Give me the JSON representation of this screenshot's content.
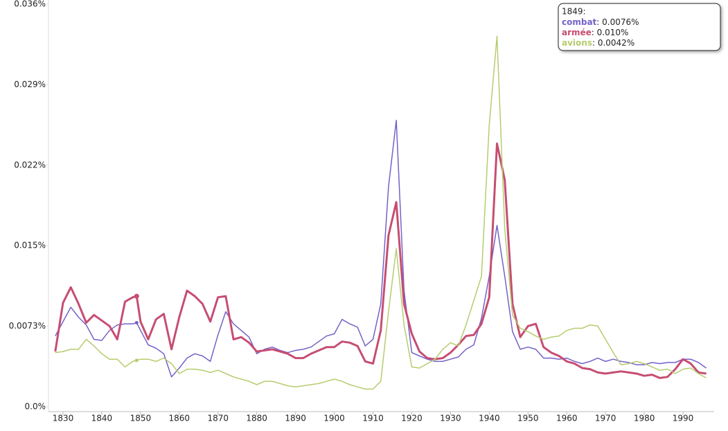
{
  "chart_data": {
    "type": "line",
    "x": [
      1828,
      1830,
      1832,
      1834,
      1836,
      1838,
      1840,
      1842,
      1844,
      1846,
      1848,
      1849,
      1850,
      1852,
      1854,
      1856,
      1858,
      1860,
      1862,
      1864,
      1866,
      1868,
      1870,
      1872,
      1874,
      1876,
      1878,
      1880,
      1882,
      1884,
      1886,
      1888,
      1890,
      1892,
      1894,
      1896,
      1898,
      1900,
      1902,
      1904,
      1906,
      1908,
      1910,
      1912,
      1914,
      1916,
      1918,
      1920,
      1922,
      1924,
      1926,
      1928,
      1930,
      1932,
      1934,
      1936,
      1938,
      1940,
      1942,
      1944,
      1946,
      1948,
      1950,
      1952,
      1954,
      1956,
      1958,
      1960,
      1962,
      1964,
      1966,
      1968,
      1970,
      1972,
      1974,
      1976,
      1978,
      1980,
      1982,
      1984,
      1986,
      1988,
      1990,
      1992,
      1994,
      1996
    ],
    "xlim": [
      1826,
      1998
    ],
    "xticks": [
      1830,
      1840,
      1850,
      1860,
      1870,
      1880,
      1890,
      1900,
      1910,
      1920,
      1930,
      1940,
      1950,
      1960,
      1970,
      1980,
      1990
    ],
    "ylim": [
      0,
      0.0364
    ],
    "yticks": [
      {
        "value": 0,
        "label": "0.0%"
      },
      {
        "value": 0.00728,
        "label": "0.0073%"
      },
      {
        "value": 0.01456,
        "label": "0.015%"
      },
      {
        "value": 0.02184,
        "label": "0.022%"
      },
      {
        "value": 0.02912,
        "label": "0.029%"
      },
      {
        "value": 0.0364,
        "label": "0.036%"
      }
    ],
    "grid": false,
    "series": [
      {
        "name": "combat",
        "color": "#7461c8",
        "width": 1.5,
        "values": [
          0.0064,
          0.0077,
          0.009,
          0.0081,
          0.0074,
          0.0061,
          0.006,
          0.0069,
          0.0074,
          0.0075,
          0.0075,
          0.0076,
          0.0069,
          0.0056,
          0.0053,
          0.0048,
          0.0027,
          0.0035,
          0.0044,
          0.0048,
          0.0046,
          0.0041,
          0.0065,
          0.0086,
          0.0075,
          0.0069,
          0.0063,
          0.0048,
          0.0052,
          0.0054,
          0.0051,
          0.0049,
          0.0051,
          0.0052,
          0.0054,
          0.0059,
          0.0064,
          0.0066,
          0.0079,
          0.0075,
          0.0072,
          0.0055,
          0.0061,
          0.0093,
          0.0199,
          0.0259,
          0.0105,
          0.0049,
          0.0046,
          0.0043,
          0.0041,
          0.0041,
          0.0043,
          0.0045,
          0.0052,
          0.0056,
          0.008,
          0.0118,
          0.0164,
          0.0118,
          0.0068,
          0.0052,
          0.0054,
          0.0052,
          0.0044,
          0.0044,
          0.0043,
          0.0044,
          0.0041,
          0.0039,
          0.0041,
          0.0044,
          0.0041,
          0.0043,
          0.0041,
          0.004,
          0.0038,
          0.0038,
          0.004,
          0.0039,
          0.004,
          0.004,
          0.0043,
          0.0043,
          0.004,
          0.0035
        ]
      },
      {
        "name": "armée",
        "color": "#c64d72",
        "width": 3,
        "values": [
          0.005,
          0.0094,
          0.0108,
          0.0093,
          0.0076,
          0.0083,
          0.0078,
          0.0073,
          0.0061,
          0.0095,
          0.0099,
          0.01,
          0.0077,
          0.0061,
          0.0079,
          0.0084,
          0.0052,
          0.0081,
          0.0105,
          0.01,
          0.0093,
          0.0077,
          0.0099,
          0.01,
          0.0061,
          0.0063,
          0.0058,
          0.005,
          0.0051,
          0.0052,
          0.005,
          0.0048,
          0.0044,
          0.0044,
          0.0048,
          0.0051,
          0.0054,
          0.0054,
          0.0059,
          0.0058,
          0.0055,
          0.0041,
          0.0039,
          0.0069,
          0.0155,
          0.0185,
          0.0093,
          0.0066,
          0.005,
          0.0044,
          0.0043,
          0.0044,
          0.0049,
          0.0056,
          0.0064,
          0.0065,
          0.0075,
          0.0099,
          0.0238,
          0.0205,
          0.0093,
          0.0063,
          0.0073,
          0.0075,
          0.0054,
          0.0049,
          0.0046,
          0.0041,
          0.0039,
          0.0035,
          0.0034,
          0.0031,
          0.003,
          0.0031,
          0.0032,
          0.0031,
          0.003,
          0.0028,
          0.0029,
          0.0026,
          0.0027,
          0.0034,
          0.0043,
          0.0039,
          0.0031,
          0.003
        ]
      },
      {
        "name": "avions",
        "color": "#b5cc6e",
        "width": 1.5,
        "values": [
          0.0049,
          0.005,
          0.0052,
          0.0052,
          0.0061,
          0.0055,
          0.0048,
          0.0043,
          0.0043,
          0.0036,
          0.0041,
          0.0042,
          0.0043,
          0.0043,
          0.0041,
          0.0044,
          0.0039,
          0.003,
          0.0034,
          0.0034,
          0.0033,
          0.0031,
          0.0033,
          0.003,
          0.0027,
          0.0025,
          0.0023,
          0.002,
          0.0023,
          0.0023,
          0.0021,
          0.0019,
          0.0018,
          0.0019,
          0.002,
          0.0021,
          0.0023,
          0.0025,
          0.0023,
          0.002,
          0.0018,
          0.0016,
          0.0016,
          0.0023,
          0.0086,
          0.0143,
          0.0074,
          0.0036,
          0.0035,
          0.0039,
          0.0043,
          0.0052,
          0.0058,
          0.0055,
          0.0074,
          0.0096,
          0.0118,
          0.0255,
          0.0335,
          0.0161,
          0.0083,
          0.0071,
          0.0068,
          0.0064,
          0.0061,
          0.0063,
          0.0064,
          0.0069,
          0.0071,
          0.0071,
          0.0074,
          0.0073,
          0.0061,
          0.0049,
          0.0038,
          0.0039,
          0.0041,
          0.0039,
          0.0036,
          0.0033,
          0.0034,
          0.003,
          0.0034,
          0.0035,
          0.003,
          0.0026
        ]
      }
    ],
    "tooltip": {
      "title": "1849:",
      "labels": [
        ": 0.0076%",
        ": 0.010%",
        ": 0.0042%"
      ],
      "index": 11
    }
  }
}
